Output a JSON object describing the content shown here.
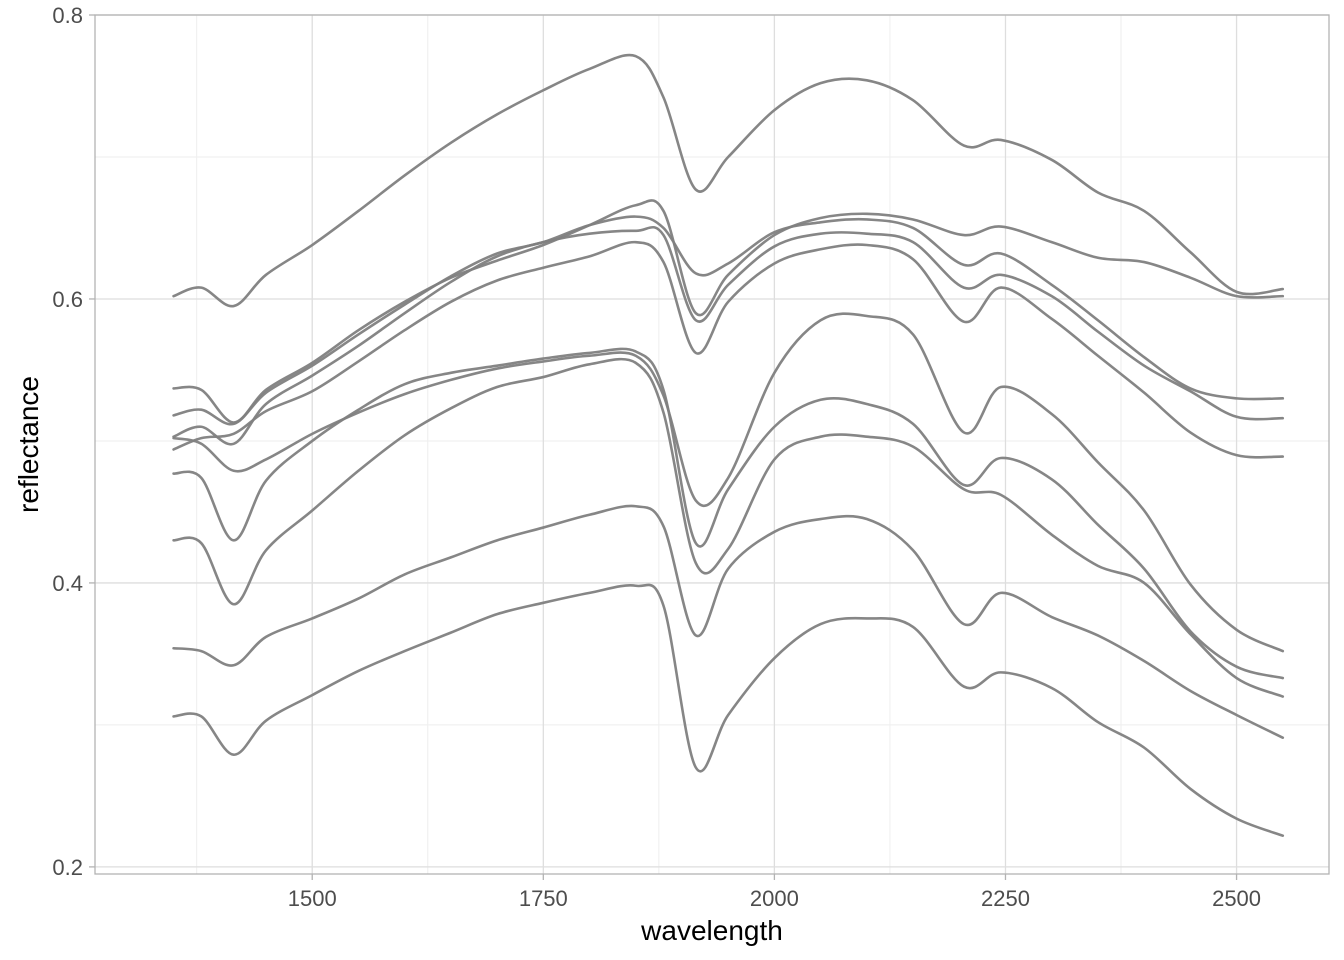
{
  "chart_data": {
    "type": "line",
    "title": "",
    "xlabel": "wavelength",
    "ylabel": "reflectance",
    "xlim": [
      1265,
      2600
    ],
    "ylim": [
      0.195,
      0.8
    ],
    "x_ticks": [
      1500,
      1750,
      2000,
      2250,
      2500
    ],
    "y_ticks": [
      0.2,
      0.4,
      0.6,
      0.8
    ],
    "x_tick_labels": [
      "1500",
      "1750",
      "2000",
      "2250",
      "2500"
    ],
    "y_tick_labels": [
      "0.2",
      "0.4",
      "0.6",
      "0.8"
    ],
    "grid": true,
    "legend": "none",
    "colors": {
      "line": "#808080",
      "panel_border": "#b3b3b3",
      "grid_major": "#dedede",
      "grid_minor": "#eeeeee"
    },
    "x": [
      1350,
      1380,
      1415,
      1450,
      1500,
      1550,
      1600,
      1650,
      1700,
      1750,
      1800,
      1850,
      1880,
      1915,
      1950,
      2000,
      2050,
      2100,
      2150,
      2205,
      2245,
      2300,
      2350,
      2400,
      2450,
      2500,
      2550
    ],
    "series": [
      {
        "values": [
          0.602,
          0.608,
          0.595,
          0.617,
          0.638,
          0.662,
          0.687,
          0.71,
          0.73,
          0.747,
          0.762,
          0.771,
          0.742,
          0.677,
          0.7,
          0.733,
          0.752,
          0.754,
          0.74,
          0.708,
          0.712,
          0.698,
          0.675,
          0.662,
          0.633,
          0.605,
          0.607
        ]
      },
      {
        "values": [
          0.537,
          0.536,
          0.513,
          0.536,
          0.555,
          0.578,
          0.598,
          0.615,
          0.627,
          0.638,
          0.652,
          0.666,
          0.662,
          0.59,
          0.617,
          0.645,
          0.657,
          0.66,
          0.656,
          0.645,
          0.651,
          0.64,
          0.629,
          0.626,
          0.615,
          0.602,
          0.602
        ]
      },
      {
        "values": [
          0.518,
          0.522,
          0.512,
          0.534,
          0.553,
          0.575,
          0.596,
          0.616,
          0.632,
          0.64,
          0.652,
          0.658,
          0.65,
          0.618,
          0.625,
          0.647,
          0.654,
          0.656,
          0.65,
          0.624,
          0.632,
          0.61,
          0.585,
          0.559,
          0.537,
          0.53,
          0.53
        ]
      },
      {
        "values": [
          0.503,
          0.51,
          0.498,
          0.526,
          0.546,
          0.567,
          0.59,
          0.612,
          0.63,
          0.64,
          0.646,
          0.648,
          0.645,
          0.585,
          0.61,
          0.637,
          0.646,
          0.646,
          0.64,
          0.608,
          0.617,
          0.602,
          0.577,
          0.553,
          0.535,
          0.517,
          0.516
        ]
      },
      {
        "values": [
          0.494,
          0.502,
          0.505,
          0.521,
          0.535,
          0.556,
          0.578,
          0.598,
          0.613,
          0.622,
          0.63,
          0.64,
          0.626,
          0.562,
          0.598,
          0.625,
          0.635,
          0.638,
          0.628,
          0.584,
          0.608,
          0.586,
          0.56,
          0.534,
          0.506,
          0.49,
          0.489
        ]
      },
      {
        "values": [
          0.502,
          0.498,
          0.479,
          0.487,
          0.505,
          0.52,
          0.533,
          0.543,
          0.551,
          0.556,
          0.56,
          0.56,
          0.532,
          0.458,
          0.474,
          0.548,
          0.585,
          0.588,
          0.575,
          0.506,
          0.538,
          0.519,
          0.485,
          0.451,
          0.399,
          0.367,
          0.352
        ]
      },
      {
        "values": [
          0.477,
          0.474,
          0.43,
          0.472,
          0.5,
          0.522,
          0.54,
          0.548,
          0.553,
          0.558,
          0.562,
          0.563,
          0.536,
          0.428,
          0.466,
          0.51,
          0.529,
          0.526,
          0.512,
          0.469,
          0.488,
          0.473,
          0.441,
          0.41,
          0.366,
          0.341,
          0.333
        ]
      },
      {
        "values": [
          0.43,
          0.428,
          0.385,
          0.423,
          0.451,
          0.479,
          0.504,
          0.523,
          0.538,
          0.545,
          0.554,
          0.555,
          0.52,
          0.414,
          0.424,
          0.487,
          0.503,
          0.503,
          0.496,
          0.466,
          0.462,
          0.434,
          0.412,
          0.4,
          0.364,
          0.333,
          0.32
        ]
      },
      {
        "values": [
          0.354,
          0.352,
          0.342,
          0.362,
          0.375,
          0.389,
          0.406,
          0.418,
          0.43,
          0.439,
          0.448,
          0.454,
          0.44,
          0.363,
          0.41,
          0.436,
          0.445,
          0.445,
          0.423,
          0.371,
          0.393,
          0.376,
          0.363,
          0.345,
          0.324,
          0.307,
          0.291
        ]
      },
      {
        "values": [
          0.306,
          0.306,
          0.279,
          0.303,
          0.321,
          0.338,
          0.352,
          0.365,
          0.378,
          0.386,
          0.393,
          0.398,
          0.384,
          0.27,
          0.307,
          0.347,
          0.371,
          0.375,
          0.369,
          0.327,
          0.337,
          0.326,
          0.302,
          0.284,
          0.255,
          0.234,
          0.222
        ]
      }
    ]
  }
}
